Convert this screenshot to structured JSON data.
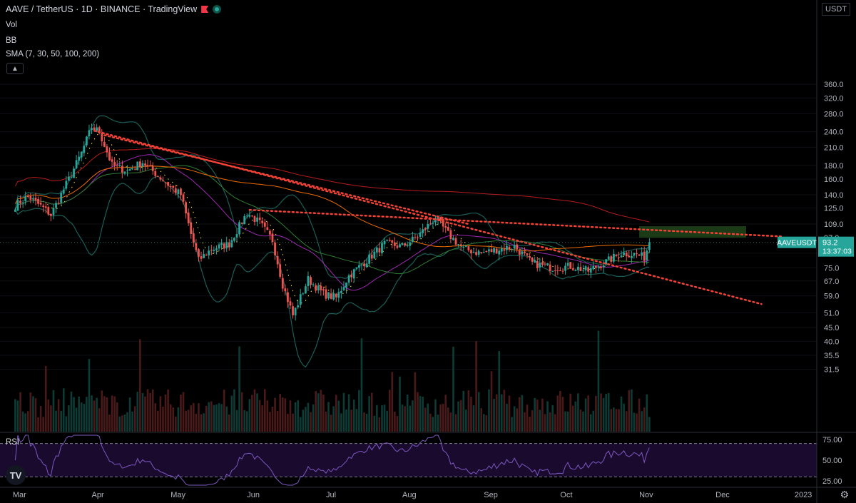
{
  "header": {
    "symbol_line": "AAVE / TetherUS · 1D · BINANCE · TradingView",
    "vol_label": "Vol",
    "bb_label": "BB",
    "sma_label": "SMA (7, 30, 50, 100, 200)",
    "collapse_icon": "chevron-up-icon",
    "flag_icon": "flag-icon",
    "status_icon": "live-dot-icon"
  },
  "price_axis": {
    "currency": "USDT",
    "ticks": [
      "360.0",
      "320.0",
      "280.0",
      "240.0",
      "210.0",
      "180.0",
      "160.0",
      "140.0",
      "125.0",
      "109.0",
      "97.0",
      "85.0",
      "75.0",
      "67.0",
      "59.0",
      "51.0",
      "45.0",
      "40.0",
      "35.5",
      "31.5"
    ]
  },
  "price_label": {
    "symbol": "AAVEUSDT",
    "price": "93.2",
    "countdown": "13:37:03"
  },
  "rsi": {
    "label": "RSI",
    "ticks": [
      "75.00",
      "50.00",
      "25.00"
    ],
    "upper": 70,
    "lower": 30
  },
  "time_axis": {
    "labels": [
      "Mar",
      "Apr",
      "May",
      "Jun",
      "Jul",
      "Aug",
      "Sep",
      "Oct",
      "Nov",
      "Dec",
      "2023"
    ]
  },
  "logo": "TV",
  "settings_icon": "gear-icon",
  "colors": {
    "up": "#26a69a",
    "down": "#ef5350",
    "sma7": "#ffeb3b",
    "sma30": "#9c27b0",
    "sma50": "#2e7d32",
    "sma100": "#ef6c00",
    "sma200": "#b71c1c",
    "bb": "#1b5e57",
    "trend": "#f44336",
    "zone": "#1b3a16",
    "rsi": "#7e57c2"
  },
  "chart_data": {
    "type": "candlestick",
    "scale": "log",
    "ylim": [
      30,
      400
    ],
    "anchors": [
      {
        "date": "Mar 1",
        "close": 128
      },
      {
        "date": "Mar 6",
        "close": 138
      },
      {
        "date": "Mar 12",
        "close": 125
      },
      {
        "date": "Mar 15",
        "close": 118
      },
      {
        "date": "Mar 22",
        "close": 160
      },
      {
        "date": "Mar 27",
        "close": 200
      },
      {
        "date": "Mar 31",
        "close": 250
      },
      {
        "date": "Apr 3",
        "close": 240
      },
      {
        "date": "Apr 8",
        "close": 180
      },
      {
        "date": "Apr 14",
        "close": 172
      },
      {
        "date": "Apr 20",
        "close": 185
      },
      {
        "date": "Apr 26",
        "close": 165
      },
      {
        "date": "May 1",
        "close": 150
      },
      {
        "date": "May 5",
        "close": 140
      },
      {
        "date": "May 9",
        "close": 100
      },
      {
        "date": "May 12",
        "close": 80
      },
      {
        "date": "May 17",
        "close": 88
      },
      {
        "date": "May 24",
        "close": 92
      },
      {
        "date": "May 31",
        "close": 120
      },
      {
        "date": "Jun 5",
        "close": 110
      },
      {
        "date": "Jun 10",
        "close": 95
      },
      {
        "date": "Jun 14",
        "close": 65
      },
      {
        "date": "Jun 18",
        "close": 50
      },
      {
        "date": "Jun 24",
        "close": 68
      },
      {
        "date": "Jun 30",
        "close": 60
      },
      {
        "date": "Jul 5",
        "close": 58
      },
      {
        "date": "Jul 10",
        "close": 70
      },
      {
        "date": "Jul 17",
        "close": 80
      },
      {
        "date": "Jul 24",
        "close": 92
      },
      {
        "date": "Jul 31",
        "close": 90
      },
      {
        "date": "Aug 6",
        "close": 98
      },
      {
        "date": "Aug 13",
        "close": 115
      },
      {
        "date": "Aug 18",
        "close": 100
      },
      {
        "date": "Aug 24",
        "close": 88
      },
      {
        "date": "Aug 31",
        "close": 85
      },
      {
        "date": "Sep 7",
        "close": 88
      },
      {
        "date": "Sep 13",
        "close": 90
      },
      {
        "date": "Sep 20",
        "close": 78
      },
      {
        "date": "Sep 28",
        "close": 75
      },
      {
        "date": "Oct 5",
        "close": 76
      },
      {
        "date": "Oct 12",
        "close": 73
      },
      {
        "date": "Oct 18",
        "close": 78
      },
      {
        "date": "Oct 25",
        "close": 85
      },
      {
        "date": "Oct 31",
        "close": 84
      },
      {
        "date": "Nov 3",
        "close": 82
      },
      {
        "date": "Nov 5",
        "close": 93.2
      }
    ],
    "last_price": 93.2,
    "price_line": 93.2,
    "trendlines": [
      {
        "from": {
          "date": "Apr 1",
          "price": 242
        },
        "to": {
          "date": "Dec 19",
          "price": 55
        }
      },
      {
        "from": {
          "date": "Apr 5",
          "price": 233
        },
        "to": {
          "date": "Aug 26",
          "price": 109
        }
      },
      {
        "from": {
          "date": "Jun 1",
          "price": 123
        },
        "to": {
          "date": "Dec 27",
          "price": 98
        }
      }
    ],
    "target_zone": {
      "from": "Nov 1",
      "to": "Dec 13",
      "low": 97,
      "high": 107
    },
    "bb_period": 20,
    "sma_periods": [
      7,
      30,
      50,
      100,
      200
    ],
    "rsi_range": [
      20,
      80
    ]
  }
}
